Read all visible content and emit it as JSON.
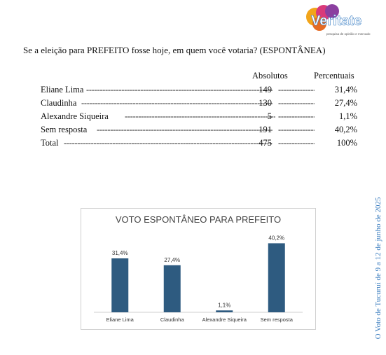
{
  "brand": {
    "name": "Veritate",
    "tagline": "pesquisa de opinião e mercado"
  },
  "question": "Se a eleição para PREFEITO fosse hoje, em quem você votaria? (ESPONTÂNEA)",
  "table": {
    "headers": {
      "absolutos": "Absolutos",
      "percentuais": "Percentuais"
    },
    "rows": [
      {
        "name": "Eliane Lima",
        "abs": "149",
        "pct": "31,4%"
      },
      {
        "name": "Claudinha",
        "abs": "130",
        "pct": "27,4%"
      },
      {
        "name": "Alexandre Siqueira",
        "abs": "5",
        "pct": "1,1%"
      },
      {
        "name": "Sem resposta",
        "abs": "191",
        "pct": "40,2%"
      },
      {
        "name": "Total",
        "abs": "475",
        "pct": "100%"
      }
    ]
  },
  "side_note": "O Voto de Tucuruí de 9 a 12 de junho de 2025",
  "chart_data": {
    "type": "bar",
    "title": "VOTO ESPONTÂNEO PARA PREFEITO",
    "categories": [
      "Eliane Lima",
      "Claudinha",
      "Alexandre Siqueira",
      "Sem resposta"
    ],
    "values": [
      31.4,
      27.4,
      1.1,
      40.2
    ],
    "value_labels": [
      "31,4%",
      "27,4%",
      "1,1%",
      "40,2%"
    ],
    "ylim": [
      0,
      42
    ],
    "grid": false,
    "color": "#2e5b80"
  }
}
